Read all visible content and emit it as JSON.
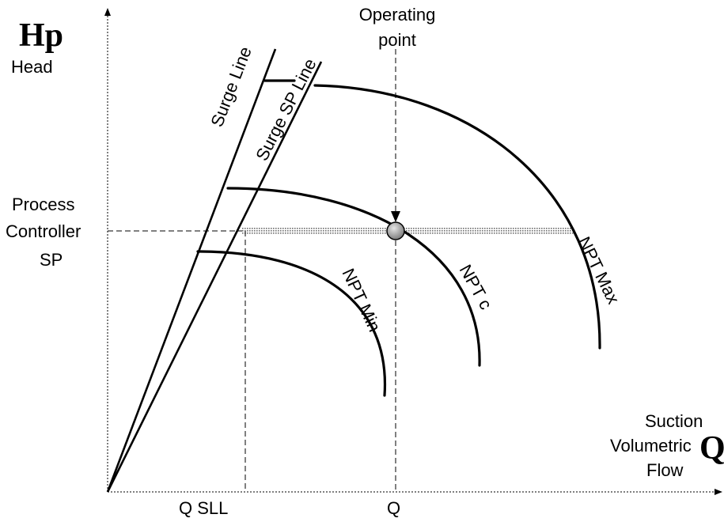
{
  "y_axis": {
    "symbol": "Hp",
    "label": "Head"
  },
  "x_axis": {
    "symbol": "Q",
    "label_lines": [
      "Suction",
      "Volumetric",
      "Flow"
    ]
  },
  "setpoint_label_lines": [
    "Process",
    "Controller",
    "SP"
  ],
  "operating_point_label_lines": [
    "Operating",
    "point"
  ],
  "lines": {
    "surge_line": "Surge Line",
    "surge_sp_line": "Surge SP Line"
  },
  "curves": {
    "npt_min": "NPT Min",
    "npt_c": "NPT c",
    "npt_max": "NPT Max"
  },
  "x_ticks": {
    "q_sll": "Q SLL",
    "q": "Q"
  },
  "colors": {
    "line": "#000000",
    "operating_point_fill": "#9a9a9a",
    "controller_band": "#8a8a8a"
  }
}
